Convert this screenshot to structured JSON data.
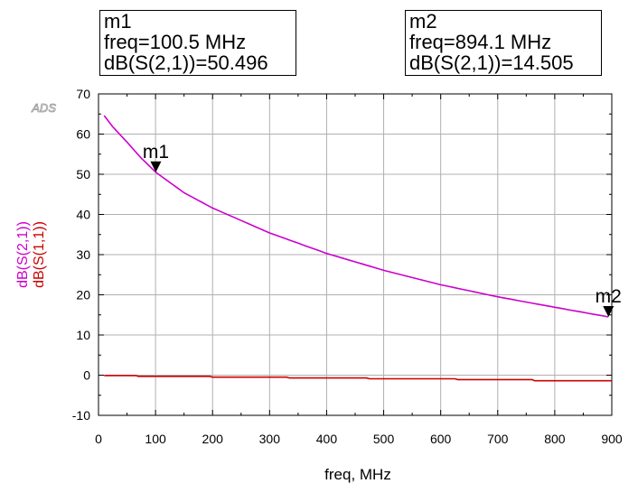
{
  "chart_data": {
    "type": "line",
    "watermark": "ADS",
    "xlabel": "freq, MHz",
    "x_ticks": [
      0,
      100,
      200,
      300,
      400,
      500,
      600,
      700,
      800,
      900
    ],
    "y_ticks": [
      -10,
      0,
      10,
      20,
      30,
      40,
      50,
      60,
      70
    ],
    "xlim": [
      0,
      900
    ],
    "ylim": [
      -10,
      70
    ],
    "grid": true,
    "series": [
      {
        "name": "dB(S(2,1))",
        "color": "#cc00cc",
        "x": [
          10,
          25,
          50,
          75,
          100.5,
          150,
          200,
          300,
          400,
          500,
          600,
          700,
          800,
          894.1
        ],
        "y": [
          64.6,
          61.8,
          58.0,
          54.0,
          50.496,
          45.4,
          41.6,
          35.4,
          30.3,
          26.1,
          22.5,
          19.5,
          16.9,
          14.505
        ]
      },
      {
        "name": "dB(S(1,1))",
        "color": "#cc0000",
        "x": [
          10,
          65,
          70,
          195,
          200,
          330,
          335,
          470,
          475,
          625,
          630,
          760,
          765,
          900
        ],
        "y": [
          -0.1,
          -0.1,
          -0.3,
          -0.3,
          -0.5,
          -0.5,
          -0.7,
          -0.7,
          -0.9,
          -0.9,
          -1.1,
          -1.1,
          -1.4,
          -1.4
        ]
      }
    ],
    "markers": [
      {
        "id": "m1",
        "name": "m1",
        "freq_text": "freq=100.5 MHz",
        "value_text": "dB(S(2,1))=50.496",
        "x": 100.5,
        "y": 50.496
      },
      {
        "id": "m2",
        "name": "m2",
        "freq_text": "freq=894.1 MHz",
        "value_text": "dB(S(2,1))=14.505",
        "x": 894.1,
        "y": 14.505
      }
    ]
  }
}
